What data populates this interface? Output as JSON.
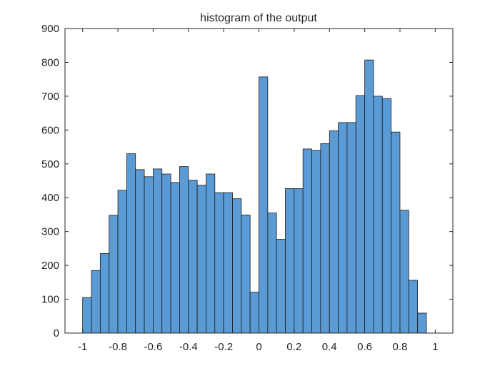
{
  "chart_data": {
    "type": "bar",
    "title": "histogram of the output",
    "xlabel": "",
    "ylabel": "",
    "xlim": [
      -1.1,
      1.1
    ],
    "ylim": [
      0,
      900
    ],
    "grid": false,
    "bin_edges": [
      -1.0,
      -0.95,
      -0.9,
      -0.85,
      -0.8,
      -0.75,
      -0.7,
      -0.65,
      -0.6,
      -0.55,
      -0.5,
      -0.45,
      -0.4,
      -0.35,
      -0.3,
      -0.25,
      -0.2,
      -0.15,
      -0.1,
      -0.05,
      0.0,
      0.05,
      0.1,
      0.15,
      0.2,
      0.25,
      0.3,
      0.35,
      0.4,
      0.45,
      0.5,
      0.55,
      0.6,
      0.65,
      0.7,
      0.75,
      0.8,
      0.85,
      0.9,
      0.95
    ],
    "values": [
      105,
      185,
      235,
      348,
      422,
      530,
      483,
      462,
      485,
      470,
      445,
      492,
      452,
      437,
      470,
      415,
      415,
      397,
      349,
      121,
      757,
      355,
      277,
      427,
      427,
      544,
      540,
      560,
      598,
      622,
      622,
      702,
      807,
      700,
      693,
      594,
      363,
      156,
      59
    ],
    "x_ticks": [
      "-1",
      "-0.8",
      "-0.6",
      "-0.4",
      "-0.2",
      "0",
      "0.2",
      "0.4",
      "0.6",
      "0.8",
      "1"
    ],
    "x_tick_values": [
      -1,
      -0.8,
      -0.6,
      -0.4,
      -0.2,
      0,
      0.2,
      0.4,
      0.6,
      0.8,
      1
    ],
    "y_ticks": [
      "0",
      "100",
      "200",
      "300",
      "400",
      "500",
      "600",
      "700",
      "800",
      "900"
    ],
    "y_tick_values": [
      0,
      100,
      200,
      300,
      400,
      500,
      600,
      700,
      800,
      900
    ],
    "colors": {
      "bar_fill": "#5b9bd5",
      "bar_edge": "#1a1a1a",
      "axis": "#262626"
    }
  }
}
